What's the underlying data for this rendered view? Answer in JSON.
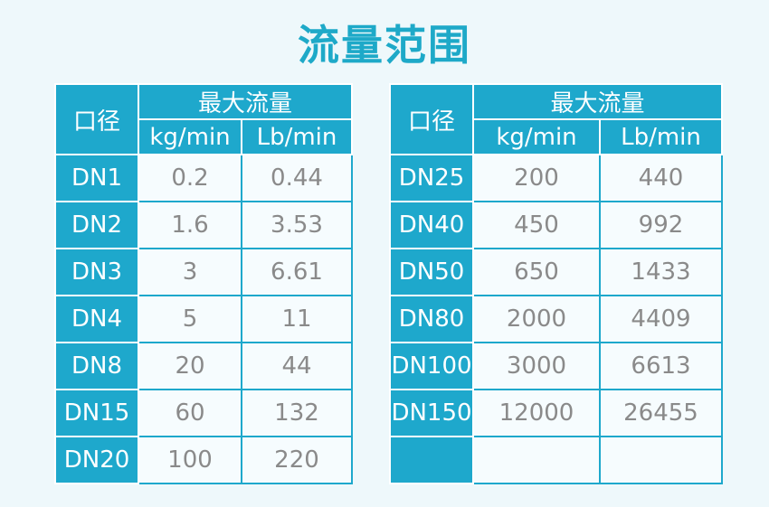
{
  "title": "流量范围",
  "colors": {
    "accent": "#1ea8cc",
    "background": "#eef8fb",
    "value_text": "#8a8a8a"
  },
  "headers": {
    "diameter": "口径",
    "max_flow": "最大流量",
    "unit_kg": "kg/min",
    "unit_lb": "Lb/min"
  },
  "left_table": [
    {
      "dn": "DN1",
      "kg": "0.2",
      "lb": "0.44"
    },
    {
      "dn": "DN2",
      "kg": "1.6",
      "lb": "3.53"
    },
    {
      "dn": "DN3",
      "kg": "3",
      "lb": "6.61"
    },
    {
      "dn": "DN4",
      "kg": "5",
      "lb": "11"
    },
    {
      "dn": "DN8",
      "kg": "20",
      "lb": "44"
    },
    {
      "dn": "DN15",
      "kg": "60",
      "lb": "132"
    },
    {
      "dn": "DN20",
      "kg": "100",
      "lb": "220"
    }
  ],
  "right_table": [
    {
      "dn": "DN25",
      "kg": "200",
      "lb": "440"
    },
    {
      "dn": "DN40",
      "kg": "450",
      "lb": "992"
    },
    {
      "dn": "DN50",
      "kg": "650",
      "lb": "1433"
    },
    {
      "dn": "DN80",
      "kg": "2000",
      "lb": "4409"
    },
    {
      "dn": "DN100",
      "kg": "3000",
      "lb": "6613"
    },
    {
      "dn": "DN150",
      "kg": "12000",
      "lb": "26455"
    },
    {
      "dn": "",
      "kg": "",
      "lb": ""
    }
  ]
}
